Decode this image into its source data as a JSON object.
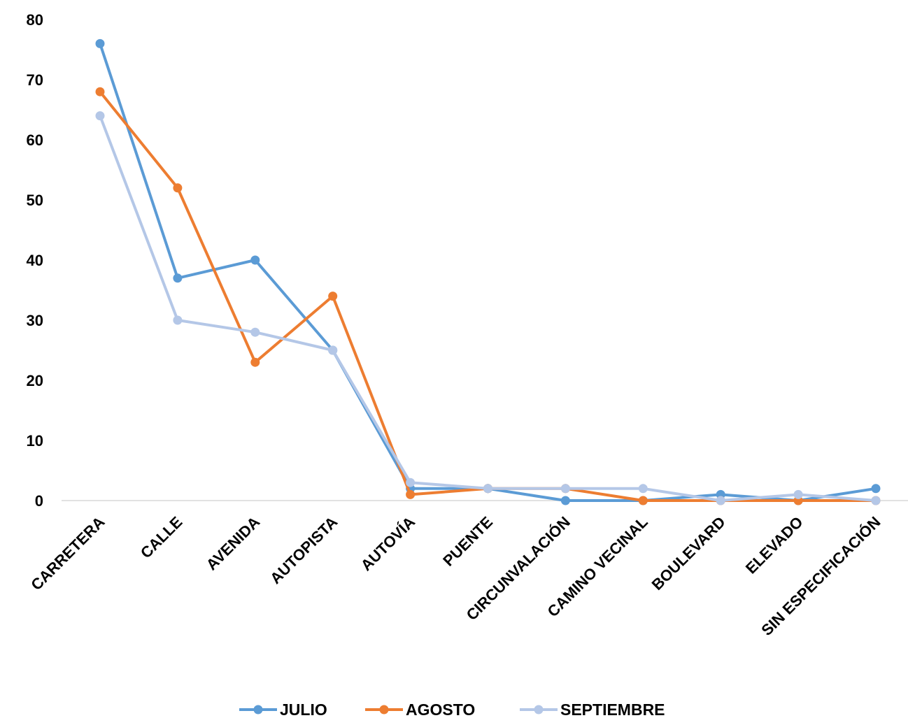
{
  "chart_data": {
    "type": "line",
    "categories": [
      "CARRETERA",
      "CALLE",
      "AVENIDA",
      "AUTOPISTA",
      "AUTOVÍA",
      "PUENTE",
      "CIRCUNVALACIÓN",
      "CAMINO VECINAL",
      "BOULEVARD",
      "ELEVADO",
      "SIN ESPECIFICACIÓN"
    ],
    "series": [
      {
        "name": "JULIO",
        "color": "#5B9BD5",
        "values": [
          76,
          37,
          40,
          25,
          2,
          2,
          0,
          0,
          1,
          0,
          2
        ]
      },
      {
        "name": "AGOSTO",
        "color": "#ED7D31",
        "values": [
          68,
          52,
          23,
          34,
          1,
          2,
          2,
          0,
          0,
          0,
          0
        ]
      },
      {
        "name": "SEPTIEMBRE",
        "color": "#B4C7E7",
        "values": [
          64,
          30,
          28,
          25,
          3,
          2,
          2,
          2,
          0,
          1,
          0
        ]
      }
    ],
    "yticks": [
      "0",
      "10",
      "20",
      "30",
      "40",
      "50",
      "60",
      "70",
      "80"
    ],
    "ylim": [
      0,
      80
    ],
    "grid": false,
    "legend": "bottom"
  }
}
